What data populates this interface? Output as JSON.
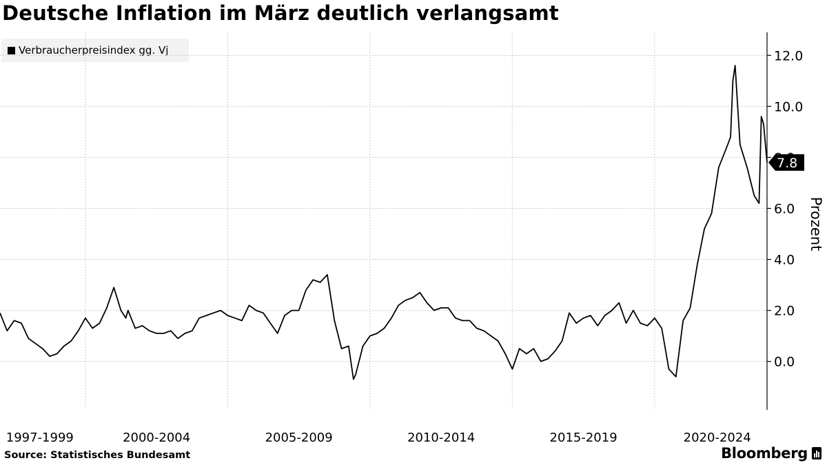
{
  "title": "Deutsche Inflation im März deutlich verlangsamt",
  "source": "Source: Statistisches Bundesamt",
  "brand": "Bloomberg",
  "brand_icon": "bloomberg-chart-icon",
  "colors": {
    "line": "#000000",
    "grid": "#cccccc",
    "legend_bg": "#f2f2f2",
    "label_bg": "#000000",
    "label_text": "#ffffff"
  },
  "chart_data": {
    "type": "line",
    "title": "Deutsche Inflation im März deutlich verlangsamt",
    "xlabel": "",
    "ylabel": "Prozent",
    "ylim": [
      -1.9,
      12.9
    ],
    "xlim": [
      1997.0,
      2023.95
    ],
    "y_ticks": [
      "12.0",
      "10.0",
      "8.0",
      "6.0",
      "4.0",
      "2.0",
      "0.0"
    ],
    "y_tick_values": [
      12,
      10,
      8,
      6,
      4,
      2,
      0
    ],
    "x_tick_labels": [
      "1997-1999",
      "2000-2004",
      "2005-2009",
      "2010-2014",
      "2015-2019",
      "2020-2024"
    ],
    "x_label_centers": [
      1998.4,
      2002.5,
      2007.5,
      2012.5,
      2017.5,
      2022.2
    ],
    "x_gridlines": [
      2000,
      2005,
      2010,
      2015,
      2020
    ],
    "legend": [
      "Verbraucherpreisindex gg. Vj"
    ],
    "legend_position": "top-left",
    "grid": true,
    "last_value_label": "7.8",
    "series": [
      {
        "name": "Verbraucherpreisindex gg. Vj",
        "x": [
          1997.0,
          1997.25,
          1997.5,
          1997.75,
          1998.0,
          1998.25,
          1998.5,
          1998.75,
          1999.0,
          1999.25,
          1999.5,
          1999.75,
          2000.0,
          2000.25,
          2000.5,
          2000.75,
          2001.0,
          2001.25,
          2001.42,
          2001.5,
          2001.75,
          2002.0,
          2002.25,
          2002.5,
          2002.75,
          2003.0,
          2003.25,
          2003.5,
          2003.75,
          2004.0,
          2004.25,
          2004.5,
          2004.75,
          2005.0,
          2005.25,
          2005.5,
          2005.75,
          2006.0,
          2006.25,
          2006.5,
          2006.75,
          2007.0,
          2007.25,
          2007.5,
          2007.75,
          2008.0,
          2008.25,
          2008.5,
          2008.75,
          2009.0,
          2009.25,
          2009.42,
          2009.5,
          2009.75,
          2010.0,
          2010.25,
          2010.5,
          2010.75,
          2011.0,
          2011.25,
          2011.5,
          2011.75,
          2012.0,
          2012.25,
          2012.5,
          2012.75,
          2013.0,
          2013.25,
          2013.5,
          2013.75,
          2014.0,
          2014.25,
          2014.5,
          2014.75,
          2015.0,
          2015.25,
          2015.5,
          2015.75,
          2016.0,
          2016.25,
          2016.5,
          2016.75,
          2017.0,
          2017.25,
          2017.5,
          2017.75,
          2018.0,
          2018.25,
          2018.5,
          2018.75,
          2019.0,
          2019.25,
          2019.5,
          2019.75,
          2020.0,
          2020.25,
          2020.5,
          2020.75,
          2021.0,
          2021.25,
          2021.5,
          2021.75,
          2022.0,
          2022.25,
          2022.5,
          2022.67,
          2022.75,
          2022.83,
          2023.0,
          2023.25,
          2023.5,
          2023.67,
          2023.75,
          2023.83,
          2023.95
        ],
        "values": [
          1.9,
          1.2,
          1.6,
          1.5,
          0.9,
          0.7,
          0.5,
          0.2,
          0.3,
          0.6,
          0.8,
          1.2,
          1.7,
          1.3,
          1.5,
          2.1,
          2.9,
          2.0,
          1.7,
          2.0,
          1.3,
          1.4,
          1.2,
          1.1,
          1.1,
          1.2,
          0.9,
          1.1,
          1.2,
          1.7,
          1.8,
          1.9,
          2.0,
          1.8,
          1.7,
          1.6,
          2.2,
          2.0,
          1.9,
          1.5,
          1.1,
          1.8,
          2.0,
          2.0,
          2.8,
          3.2,
          3.1,
          3.4,
          1.6,
          0.5,
          0.6,
          -0.7,
          -0.5,
          0.6,
          1.0,
          1.1,
          1.3,
          1.7,
          2.2,
          2.4,
          2.5,
          2.7,
          2.3,
          2.0,
          2.1,
          2.1,
          1.7,
          1.6,
          1.6,
          1.3,
          1.2,
          1.0,
          0.8,
          0.3,
          -0.3,
          0.5,
          0.3,
          0.5,
          0.0,
          0.1,
          0.4,
          0.8,
          1.9,
          1.5,
          1.7,
          1.8,
          1.4,
          1.8,
          2.0,
          2.3,
          1.5,
          2.0,
          1.5,
          1.4,
          1.7,
          1.3,
          -0.3,
          -0.6,
          1.6,
          2.1,
          3.8,
          5.2,
          5.8,
          7.6,
          8.3,
          8.8,
          11.0,
          11.6,
          8.5,
          7.6,
          6.5,
          6.2,
          9.6,
          9.3,
          7.8
        ]
      }
    ]
  }
}
